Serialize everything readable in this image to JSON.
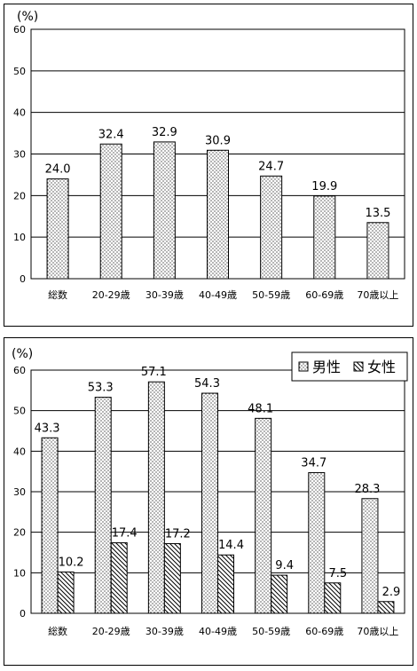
{
  "chart_data": [
    {
      "type": "bar",
      "unit_label": "(%)",
      "categories": [
        "総数",
        "20-29歳",
        "30-39歳",
        "40-49歳",
        "50-59歳",
        "60-69歳",
        "70歳以上"
      ],
      "series": [
        {
          "values": [
            24.0,
            32.4,
            32.9,
            30.9,
            24.7,
            19.9,
            13.5
          ],
          "pattern": "dots"
        }
      ],
      "value_labels": [
        "24.0",
        "32.4",
        "32.9",
        "30.9",
        "24.7",
        "19.9",
        "13.5"
      ],
      "ylim": [
        0,
        60
      ],
      "yticks": [
        "0",
        "10",
        "20",
        "30",
        "40",
        "50",
        "60"
      ],
      "grid": true,
      "legend": null
    },
    {
      "type": "bar",
      "unit_label": "(%)",
      "categories": [
        "総数",
        "20-29歳",
        "30-39歳",
        "40-49歳",
        "50-59歳",
        "60-69歳",
        "70歳以上"
      ],
      "series": [
        {
          "name": "男性",
          "values": [
            43.3,
            53.3,
            57.1,
            54.3,
            48.1,
            34.7,
            28.3
          ],
          "pattern": "dots",
          "value_labels": [
            "43.3",
            "53.3",
            "57.1",
            "54.3",
            "48.1",
            "34.7",
            "28.3"
          ]
        },
        {
          "name": "女性",
          "values": [
            10.2,
            17.4,
            17.2,
            14.4,
            9.4,
            7.5,
            2.9
          ],
          "pattern": "hatch",
          "value_labels": [
            "10.2",
            "17.4",
            "17.2",
            "14.4",
            "9.4",
            "7.5",
            "2.9"
          ]
        }
      ],
      "ylim": [
        0,
        60
      ],
      "yticks": [
        "0",
        "10",
        "20",
        "30",
        "40",
        "50",
        "60"
      ],
      "grid": true,
      "legend": "top-right"
    }
  ]
}
